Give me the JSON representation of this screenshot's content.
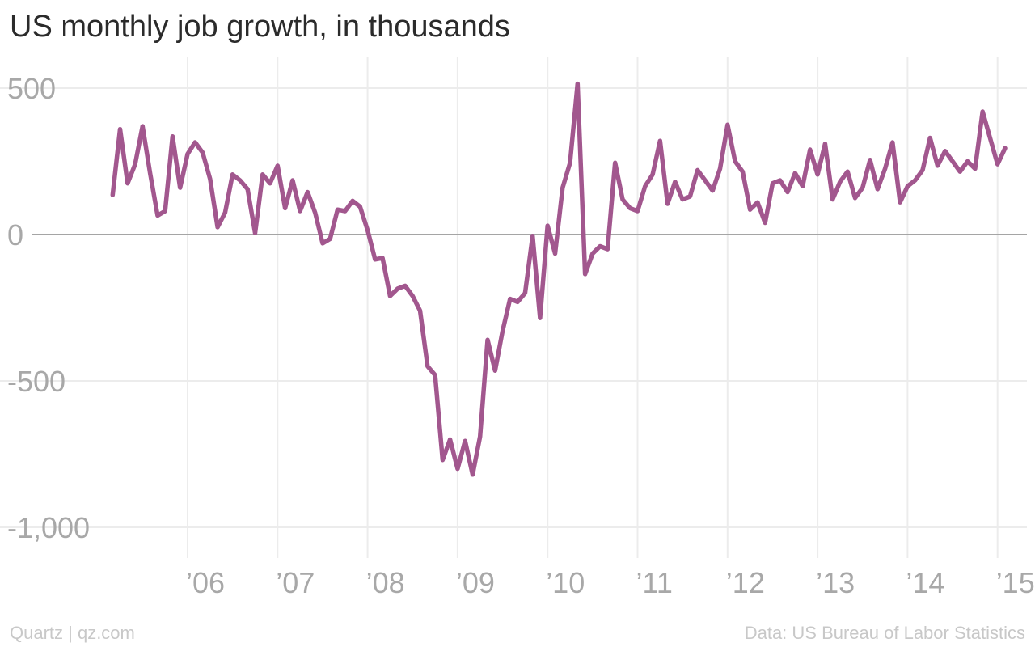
{
  "chart_data": {
    "type": "line",
    "title": "US monthly job growth, in thousands",
    "xlabel": "",
    "ylabel": "",
    "ylim": [
      -1000,
      500
    ],
    "xlim": [
      "2005-04",
      "2015-03"
    ],
    "y_ticks": [
      500,
      0,
      -500,
      -1000
    ],
    "y_tick_labels": [
      "500",
      "0",
      "-500",
      "-1,000"
    ],
    "x_ticks": [
      "2006-01",
      "2007-01",
      "2008-01",
      "2009-01",
      "2010-01",
      "2011-01",
      "2012-01",
      "2013-01",
      "2014-01",
      "2015-01"
    ],
    "x_tick_labels": [
      "’06",
      "’07",
      "’08",
      "’09",
      "’10",
      "’11",
      "’12",
      "’13",
      "’14",
      "’15"
    ],
    "grid": true,
    "line_color": "#a2578e",
    "x": [
      "2005-03",
      "2005-04",
      "2005-05",
      "2005-06",
      "2005-07",
      "2005-08",
      "2005-09",
      "2005-10",
      "2005-11",
      "2005-12",
      "2006-01",
      "2006-02",
      "2006-03",
      "2006-04",
      "2006-05",
      "2006-06",
      "2006-07",
      "2006-08",
      "2006-09",
      "2006-10",
      "2006-11",
      "2006-12",
      "2007-01",
      "2007-02",
      "2007-03",
      "2007-04",
      "2007-05",
      "2007-06",
      "2007-07",
      "2007-08",
      "2007-09",
      "2007-10",
      "2007-11",
      "2007-12",
      "2008-01",
      "2008-02",
      "2008-03",
      "2008-04",
      "2008-05",
      "2008-06",
      "2008-07",
      "2008-08",
      "2008-09",
      "2008-10",
      "2008-11",
      "2008-12",
      "2009-01",
      "2009-02",
      "2009-03",
      "2009-04",
      "2009-05",
      "2009-06",
      "2009-07",
      "2009-08",
      "2009-09",
      "2009-10",
      "2009-11",
      "2009-12",
      "2010-01",
      "2010-02",
      "2010-03",
      "2010-04",
      "2010-05",
      "2010-06",
      "2010-07",
      "2010-08",
      "2010-09",
      "2010-10",
      "2010-11",
      "2010-12",
      "2011-01",
      "2011-02",
      "2011-03",
      "2011-04",
      "2011-05",
      "2011-06",
      "2011-07",
      "2011-08",
      "2011-09",
      "2011-10",
      "2011-11",
      "2011-12",
      "2012-01",
      "2012-02",
      "2012-03",
      "2012-04",
      "2012-05",
      "2012-06",
      "2012-07",
      "2012-08",
      "2012-09",
      "2012-10",
      "2012-11",
      "2012-12",
      "2013-01",
      "2013-02",
      "2013-03",
      "2013-04",
      "2013-05",
      "2013-06",
      "2013-07",
      "2013-08",
      "2013-09",
      "2013-10",
      "2013-11",
      "2013-12",
      "2014-01",
      "2014-02",
      "2014-03",
      "2014-04",
      "2014-05",
      "2014-06",
      "2014-07",
      "2014-08",
      "2014-09",
      "2014-10",
      "2014-11",
      "2014-12",
      "2015-01",
      "2015-02"
    ],
    "series": [
      {
        "values": [
          135,
          360,
          175,
          240,
          370,
          210,
          65,
          80,
          335,
          160,
          275,
          315,
          280,
          190,
          25,
          75,
          205,
          185,
          155,
          5,
          205,
          175,
          235,
          90,
          185,
          80,
          145,
          75,
          -30,
          -15,
          85,
          80,
          115,
          95,
          15,
          -85,
          -80,
          -210,
          -185,
          -175,
          -210,
          -260,
          -450,
          -480,
          -770,
          -700,
          -800,
          -705,
          -820,
          -690,
          -360,
          -465,
          -330,
          -220,
          -230,
          -200,
          -5,
          -285,
          30,
          -65,
          160,
          245,
          515,
          -135,
          -65,
          -40,
          -50,
          245,
          120,
          90,
          80,
          165,
          205,
          320,
          105,
          180,
          120,
          130,
          220,
          185,
          150,
          225,
          375,
          250,
          215,
          85,
          110,
          40,
          175,
          185,
          145,
          210,
          165,
          290,
          205,
          310,
          120,
          180,
          215,
          125,
          160,
          255,
          155,
          225,
          315,
          110,
          165,
          185,
          220,
          330,
          235,
          285,
          250,
          215,
          250,
          225,
          420,
          330,
          240,
          295
        ]
      }
    ]
  },
  "footer": {
    "credit": "Quartz | qz.com",
    "source": "Data: US Bureau of Labor Statistics"
  }
}
